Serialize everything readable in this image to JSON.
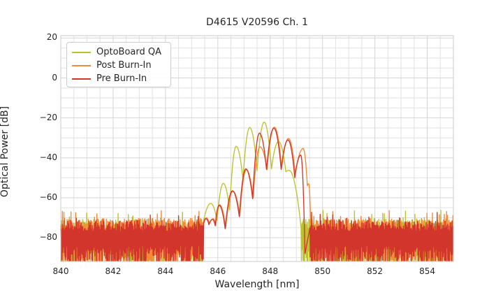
{
  "figure": {
    "title": "D4615 V20596 Ch. 1",
    "xlabel": "Wavelength [nm]",
    "ylabel": "Optical Power [dB]"
  },
  "legend": {
    "position": "upper left",
    "items": [
      {
        "label": "OptoBoard QA",
        "color": "#bcc22f"
      },
      {
        "label": "Post Burn-In",
        "color": "#f28a38"
      },
      {
        "label": "Pre Burn-In",
        "color": "#d2352b"
      }
    ]
  },
  "axes": {
    "x_tick_labels": [
      "840",
      "842",
      "844",
      "846",
      "848",
      "850",
      "852",
      "854"
    ],
    "y_tick_labels": [
      "20",
      "0",
      "−20",
      "−40",
      "−60",
      "−80"
    ],
    "grid_minor_color": "#e2e2e2",
    "grid_major_color": "#d5d5d5",
    "frame_color": "#cbcbcb",
    "text_color": "#262626"
  },
  "chart_data": {
    "type": "line",
    "title": "D4615 V20596 Ch. 1",
    "xlabel": "Wavelength [nm]",
    "ylabel": "Optical Power [dB]",
    "xlim": [
      840,
      855
    ],
    "ylim": [
      -91.9,
      21.2
    ],
    "x_ticks": [
      840,
      842,
      844,
      846,
      848,
      850,
      852,
      854
    ],
    "y_ticks": [
      20,
      0,
      -20,
      -40,
      -60,
      -80
    ],
    "grid": {
      "major": true,
      "minor": true,
      "x_minor_step": 0.5,
      "y_minor_step": 5
    },
    "noise_floor": {
      "top_db_range": [
        -76,
        -70
      ],
      "bottom_db_range": [
        -92.5,
        -84
      ]
    },
    "series": [
      {
        "name": "OptoBoard QA",
        "color": "#bcc22f",
        "seed": 11,
        "top_base": -76.2,
        "noise_regions": [
          [
            840,
            845.42
          ],
          [
            849.18,
            855
          ]
        ],
        "signal_points": [
          [
            "v",
            845.42,
            -74.0
          ],
          [
            "p",
            845.73,
            -62.8
          ],
          [
            "v",
            845.97,
            -71.5
          ],
          [
            "p",
            846.21,
            -52.8
          ],
          [
            "v",
            846.45,
            -66.0
          ],
          [
            "p",
            846.7,
            -34.2
          ],
          [
            "v",
            846.96,
            -51.0
          ],
          [
            "p",
            847.22,
            -24.8
          ],
          [
            "v",
            847.5,
            -46.5
          ],
          [
            "p",
            847.77,
            -22.1
          ],
          [
            "v",
            848.05,
            -45.5
          ],
          [
            "p",
            848.32,
            -31.8
          ],
          [
            "v",
            848.6,
            -47.0
          ],
          [
            "p",
            848.72,
            -46.2
          ],
          [
            "v",
            849.18,
            -75.0
          ]
        ]
      },
      {
        "name": "Post Burn-In",
        "color": "#f28a38",
        "seed": 23,
        "top_base": -75.8,
        "noise_regions": [
          [
            840,
            845.44
          ],
          [
            849.55,
            855
          ]
        ],
        "signal_points": [
          [
            "v",
            845.44,
            -72.5
          ],
          [
            "p",
            845.56,
            -70.0
          ],
          [
            "v",
            845.68,
            -73.0
          ],
          [
            "p",
            845.82,
            -70.5
          ],
          [
            "v",
            845.92,
            -74.0
          ],
          [
            "p",
            846.07,
            -63.5
          ],
          [
            "v",
            846.3,
            -75.0
          ],
          [
            "p",
            846.58,
            -56.8
          ],
          [
            "v",
            846.84,
            -69.0
          ],
          [
            "p",
            847.09,
            -46.0
          ],
          [
            "v",
            847.35,
            -60.0
          ],
          [
            "p",
            847.61,
            -34.5
          ],
          [
            "v",
            847.88,
            -46.0
          ],
          [
            "p",
            848.16,
            -24.6
          ],
          [
            "v",
            848.44,
            -45.0
          ],
          [
            "p",
            848.7,
            -30.3
          ],
          [
            "v",
            848.96,
            -48.0
          ],
          [
            "p",
            849.26,
            -35.3
          ],
          [
            "v",
            849.42,
            -54.0
          ],
          [
            "p",
            849.47,
            -53.0
          ],
          [
            "v",
            849.55,
            -73.5
          ]
        ]
      },
      {
        "name": "Pre Burn-In",
        "color": "#d2352b",
        "seed": 37,
        "top_base": -76.8,
        "noise_regions": [
          [
            840,
            845.46
          ],
          [
            849.52,
            855
          ]
        ],
        "signal_points": [
          [
            "v",
            845.46,
            -72.8
          ],
          [
            "p",
            845.55,
            -70.5
          ],
          [
            "v",
            845.66,
            -73.5
          ],
          [
            "p",
            845.8,
            -70.8
          ],
          [
            "v",
            845.9,
            -74.0
          ],
          [
            "p",
            846.05,
            -63.8
          ],
          [
            "v",
            846.28,
            -75.5
          ],
          [
            "p",
            846.56,
            -56.5
          ],
          [
            "v",
            846.82,
            -69.5
          ],
          [
            "p",
            847.07,
            -45.5
          ],
          [
            "v",
            847.33,
            -60.5
          ],
          [
            "p",
            847.59,
            -27.6
          ],
          [
            "v",
            847.86,
            -45.8
          ],
          [
            "p",
            848.14,
            -25.1
          ],
          [
            "v",
            848.42,
            -45.8
          ],
          [
            "p",
            848.68,
            -31.0
          ],
          [
            "v",
            848.94,
            -50.0
          ],
          [
            "p",
            849.17,
            -38.6
          ],
          [
            "v",
            849.33,
            -88.0
          ]
        ]
      }
    ]
  }
}
